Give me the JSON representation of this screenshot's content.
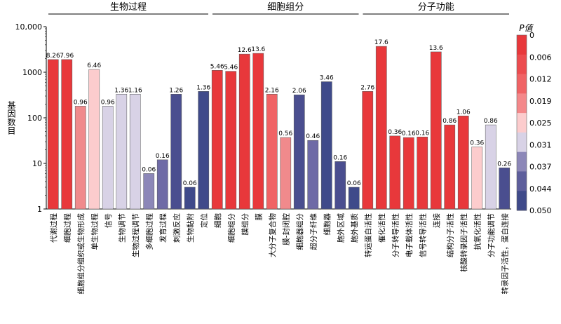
{
  "chart_data": {
    "type": "bar",
    "ylabel": "基因数目",
    "yscale": "log",
    "ylim": [
      1,
      10000
    ],
    "yticks": [
      "1",
      "10",
      "100",
      "1000",
      "10,000"
    ],
    "groups": [
      {
        "label": "生物过程",
        "start": 0,
        "end": 11
      },
      {
        "label": "细胞组分",
        "start": 12,
        "end": 22
      },
      {
        "label": "分子功能",
        "start": 23,
        "end": 33
      }
    ],
    "categories": [
      "代谢过程",
      "细胞过程",
      "细胞组分组织或生物形成",
      "单生物过程",
      "信号",
      "生物调节",
      "生物过程调节",
      "多细胞过程",
      "发育过程",
      "刺激反应",
      "生物黏附",
      "定位",
      "细胞",
      "细胞组分",
      "膜组分",
      "膜",
      "大分子复合物",
      "膜-封闭腔",
      "细胞器组分",
      "超分子纤维",
      "细胞器",
      "胞外区域",
      "胞外基质",
      "转运蛋白活性",
      "催化活性",
      "分子转导活性",
      "电子载体活性",
      "信号转导活性",
      "连接",
      "结构分子活性",
      "核酸转录因子活性",
      "抗氧化活性",
      "分子功能调节",
      "转录因子活性，蛋白连接"
    ],
    "values": [
      1900,
      1900,
      180,
      1150,
      180,
      330,
      330,
      6,
      12,
      330,
      3,
      380,
      1100,
      1050,
      2500,
      2600,
      330,
      37,
      320,
      32,
      620,
      11,
      3,
      380,
      3700,
      40,
      37,
      38,
      2800,
      70,
      110,
      23,
      70,
      8
    ],
    "labels": [
      "8.26",
      "7.96",
      "0.96",
      "6.46",
      "0.96",
      "1.36",
      "1.16",
      "0.06",
      "0.16",
      "1.26",
      "0.06",
      "1.36",
      "5.46",
      "5.46",
      "12.6",
      "13.6",
      "2.16",
      "0.56",
      "2.06",
      "0.46",
      "3.46",
      "0.16",
      "0.06",
      "2.76",
      "17.6",
      "0.36",
      "0.16",
      "0.16",
      "13.6",
      "0.86",
      "1.06",
      "0.36",
      "0.86",
      "0.26"
    ],
    "colors": [
      "#e8383b",
      "#e8383b",
      "#f08a8c",
      "#fccccd",
      "#d8d2e6",
      "#d8d2e6",
      "#d8d2e6",
      "#8c87b8",
      "#6e6aa6",
      "#4a4e8f",
      "#3f4a8a",
      "#3f4a8a",
      "#e8383b",
      "#e8383b",
      "#e8383b",
      "#e8383b",
      "#f06365",
      "#f08a8c",
      "#4a4e8f",
      "#6e6aa6",
      "#3f4a8a",
      "#4a4e8f",
      "#3f4a8a",
      "#e8383b",
      "#e8383b",
      "#e8383b",
      "#e8383b",
      "#e8383b",
      "#e8383b",
      "#e8383b",
      "#e8383b",
      "#fccccd",
      "#d8d2e6",
      "#4a4e8f"
    ],
    "legend": {
      "title": "P值",
      "ticks": [
        "0",
        "0.006",
        "0.012",
        "0.019",
        "0.025",
        "0.031",
        "0.037",
        "0.044",
        "0.050"
      ],
      "colors": [
        "#e8383b",
        "#ec4c4f",
        "#f06365",
        "#f4888a",
        "#fccccd",
        "#d8d2e6",
        "#8c87b8",
        "#5d5e9c",
        "#3f4a8a"
      ]
    }
  }
}
